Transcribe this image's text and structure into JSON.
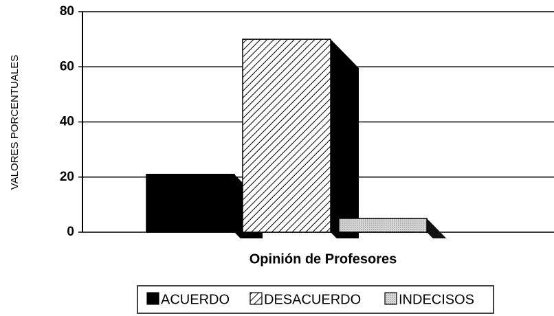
{
  "chart_data": {
    "type": "bar3d",
    "y_label": "VALORES PORCENTUALES",
    "x_label": "Opinión de Profesores",
    "categories": [
      null
    ],
    "series": [
      {
        "name": "ACUERDO",
        "color": "#000000",
        "fill_style": "solid",
        "values": [
          21
        ]
      },
      {
        "name": "DESACUERDO",
        "color": "#000000",
        "fill_style": "hatch",
        "values": [
          70
        ]
      },
      {
        "name": "INDECISOS",
        "color": "#9a9a9a",
        "fill_style": "dots",
        "values": [
          5
        ]
      }
    ],
    "ylim": [
      0,
      80
    ],
    "yticks": [
      0,
      20,
      40,
      60,
      80
    ],
    "grid": true
  }
}
